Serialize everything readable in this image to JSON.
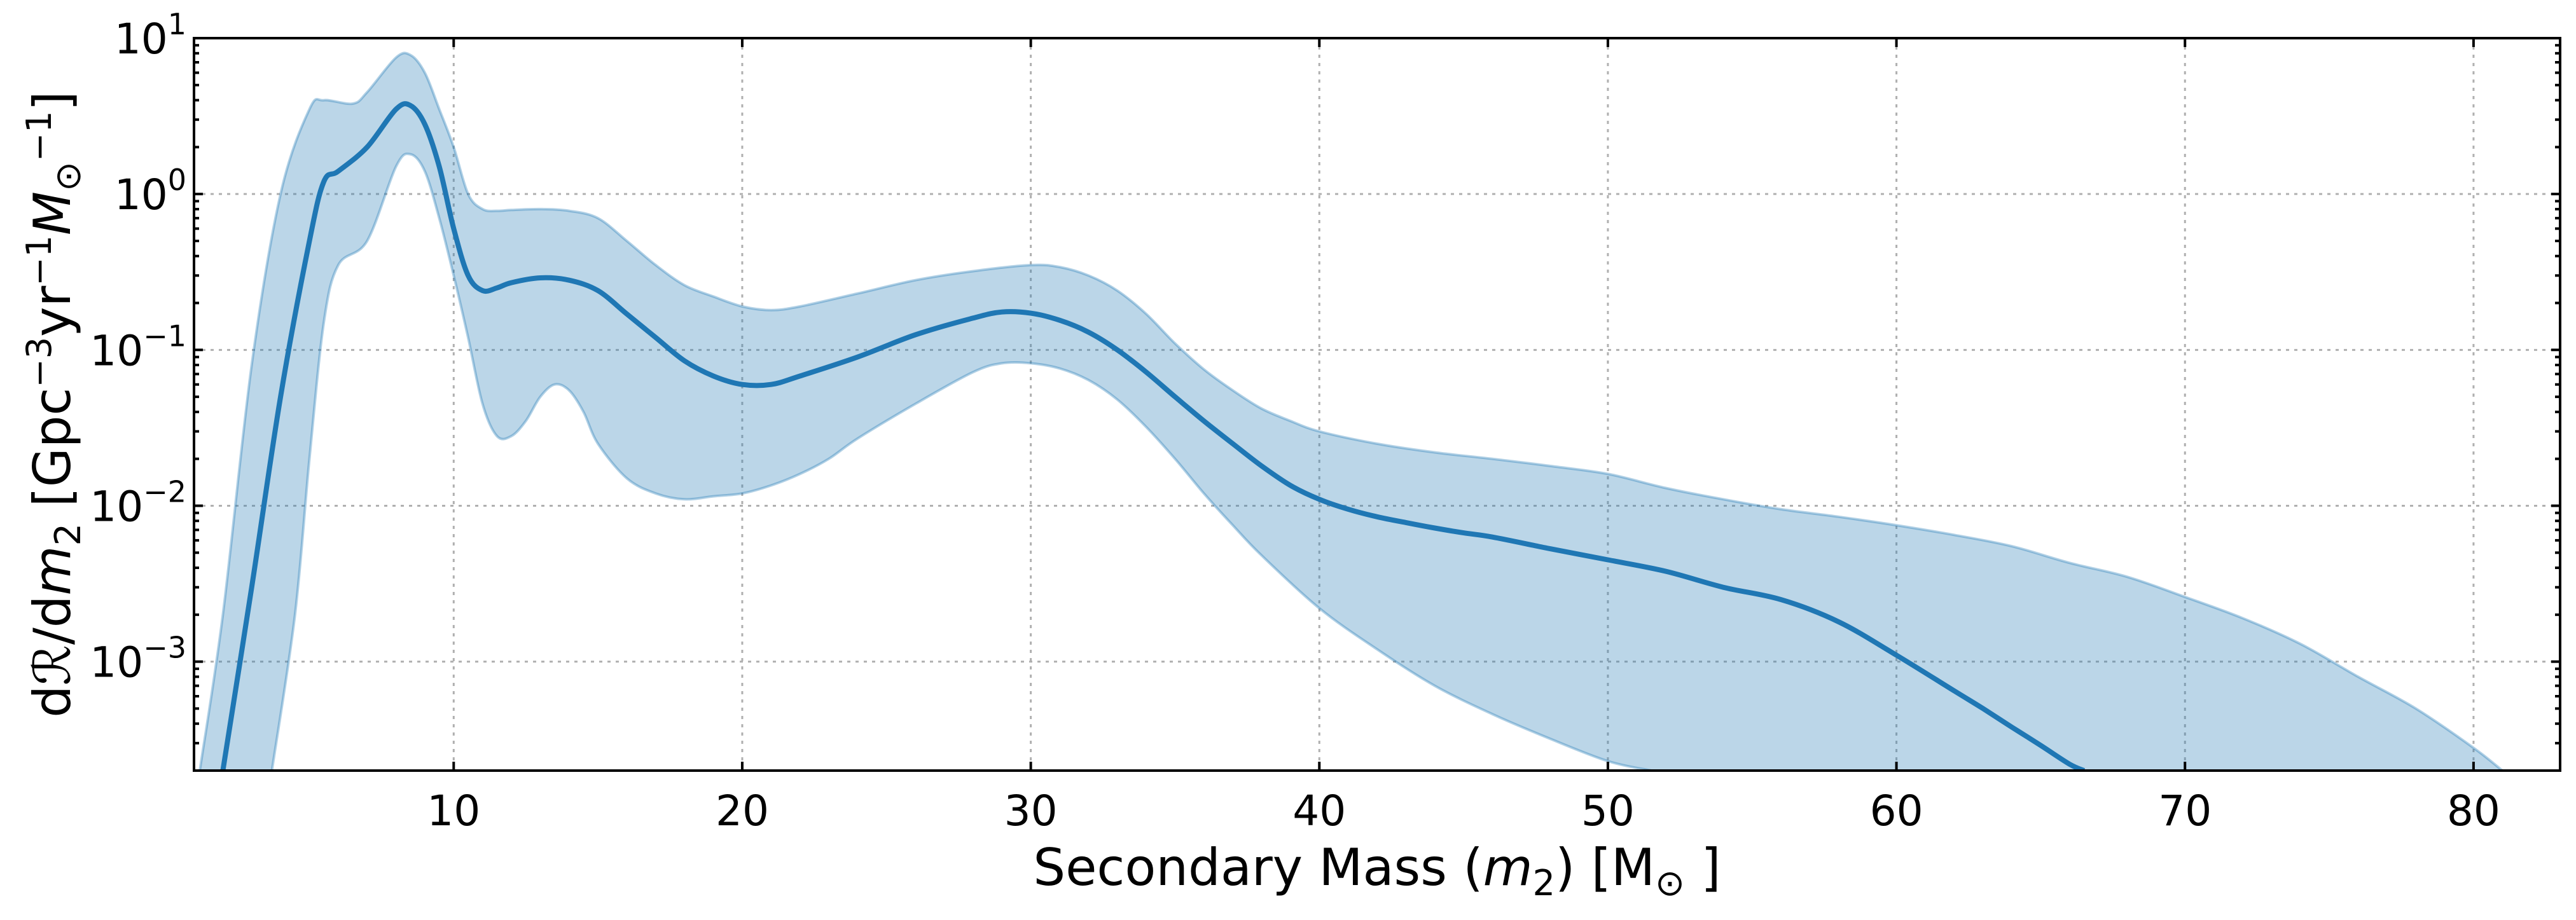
{
  "chart_data": {
    "type": "line",
    "title": "",
    "xlabel": {
      "prefix": "Secondary Mass (",
      "var": "m",
      "sub": "2",
      "suffix": ") [M",
      "unit_sub": "⊙",
      "end": " ]"
    },
    "ylabel": {
      "part1": "d",
      "calR": "ℛ",
      "part2": "/d",
      "var": "m",
      "sub": "2",
      "bracket_open": " [Gpc",
      "exp1": "−3",
      "mid1": "yr",
      "exp2": "−1",
      "mvar": "M",
      "msub": "⊙",
      "exp3": "−1",
      "bracket_close": "]"
    },
    "x_ticks": [
      10,
      20,
      30,
      40,
      50,
      60,
      70,
      80
    ],
    "x_tick_labels": [
      "10",
      "20",
      "30",
      "40",
      "50",
      "60",
      "70",
      "80"
    ],
    "y_ticks": [
      {
        "base": "10",
        "exp": "1"
      },
      {
        "base": "10",
        "exp": "0"
      },
      {
        "base": "10",
        "exp": "-1"
      },
      {
        "base": "10",
        "exp": "-2"
      },
      {
        "base": "10",
        "exp": "-3"
      }
    ],
    "xlim": [
      1,
      83
    ],
    "ylim": [
      0.0002,
      10
    ],
    "yscale": "log",
    "grid": true,
    "series": [
      {
        "line_color": "#1f77b4",
        "band_color": "#1f77b4",
        "median": {
          "x": [
            2,
            3,
            4,
            5,
            5.5,
            6,
            7,
            8,
            8.5,
            9,
            9.5,
            10,
            10.5,
            11,
            11.5,
            12,
            13,
            14,
            15,
            16,
            17,
            18,
            19,
            20,
            21,
            22,
            24,
            26,
            28,
            29,
            30,
            31,
            32,
            33,
            34,
            35,
            36,
            37,
            38,
            39,
            40,
            41,
            42,
            43,
            44,
            45,
            46,
            48,
            50,
            52,
            54,
            56,
            58,
            60,
            62,
            63,
            64,
            65,
            66,
            66.5
          ],
          "y": [
            0.0002,
            0.003,
            0.05,
            0.5,
            1.2,
            1.4,
            2.0,
            3.5,
            3.7,
            2.8,
            1.5,
            0.6,
            0.3,
            0.24,
            0.25,
            0.27,
            0.29,
            0.28,
            0.24,
            0.17,
            0.12,
            0.085,
            0.068,
            0.06,
            0.06,
            0.068,
            0.09,
            0.125,
            0.16,
            0.175,
            0.172,
            0.155,
            0.13,
            0.1,
            0.072,
            0.05,
            0.035,
            0.025,
            0.018,
            0.0135,
            0.011,
            0.0095,
            0.0085,
            0.0078,
            0.0072,
            0.0067,
            0.0063,
            0.0053,
            0.0045,
            0.0038,
            0.003,
            0.0025,
            0.0018,
            0.0011,
            0.00065,
            0.0005,
            0.00038,
            0.00029,
            0.00022,
            0.0002
          ]
        },
        "upper": {
          "x": [
            1.2,
            2,
            3,
            4,
            5,
            5.5,
            6.5,
            7,
            8,
            8.5,
            9,
            9.5,
            10,
            10.5,
            11,
            11.5,
            12,
            13,
            14,
            15,
            16,
            17,
            18,
            19,
            20,
            21,
            22,
            24,
            26,
            28,
            30,
            31,
            32,
            33,
            34,
            35,
            36,
            37,
            38,
            39,
            40,
            42,
            44,
            46,
            48,
            50,
            52,
            54,
            56,
            58,
            60,
            62,
            64,
            66,
            68,
            70,
            72,
            74,
            76,
            78,
            80,
            81
          ],
          "y": [
            0.0002,
            0.002,
            0.08,
            1.0,
            3.5,
            4.0,
            3.8,
            4.5,
            7.5,
            7.8,
            6.0,
            3.5,
            2.0,
            1.0,
            0.8,
            0.78,
            0.79,
            0.8,
            0.78,
            0.7,
            0.5,
            0.35,
            0.26,
            0.22,
            0.19,
            0.18,
            0.19,
            0.23,
            0.28,
            0.32,
            0.35,
            0.34,
            0.3,
            0.24,
            0.17,
            0.11,
            0.075,
            0.055,
            0.042,
            0.035,
            0.03,
            0.025,
            0.022,
            0.02,
            0.018,
            0.016,
            0.013,
            0.011,
            0.0095,
            0.0085,
            0.0075,
            0.0065,
            0.0055,
            0.0043,
            0.0035,
            0.0026,
            0.0019,
            0.0013,
            0.0008,
            0.0005,
            0.00028,
            0.0002
          ]
        },
        "lower": {
          "x": [
            3.7,
            4.5,
            5,
            5.5,
            6,
            7,
            8,
            8.5,
            9,
            9.5,
            10,
            10.5,
            11,
            11.5,
            12,
            12.5,
            13,
            13.5,
            14,
            14.5,
            15,
            16,
            17,
            18,
            19,
            20,
            21,
            22,
            23,
            24,
            26,
            28,
            29,
            30,
            31,
            32,
            33,
            34,
            35,
            36,
            37,
            38,
            40,
            42,
            44,
            46,
            48,
            50,
            51.5
          ],
          "y": [
            0.0002,
            0.002,
            0.02,
            0.15,
            0.35,
            0.5,
            1.5,
            1.8,
            1.4,
            0.7,
            0.3,
            0.12,
            0.045,
            0.028,
            0.028,
            0.035,
            0.05,
            0.06,
            0.055,
            0.04,
            0.025,
            0.015,
            0.012,
            0.011,
            0.0115,
            0.012,
            0.0135,
            0.016,
            0.02,
            0.027,
            0.045,
            0.072,
            0.082,
            0.082,
            0.076,
            0.064,
            0.048,
            0.032,
            0.02,
            0.012,
            0.0075,
            0.0048,
            0.0022,
            0.0012,
            0.0007,
            0.00046,
            0.00032,
            0.00023,
            0.0002
          ]
        }
      }
    ]
  }
}
